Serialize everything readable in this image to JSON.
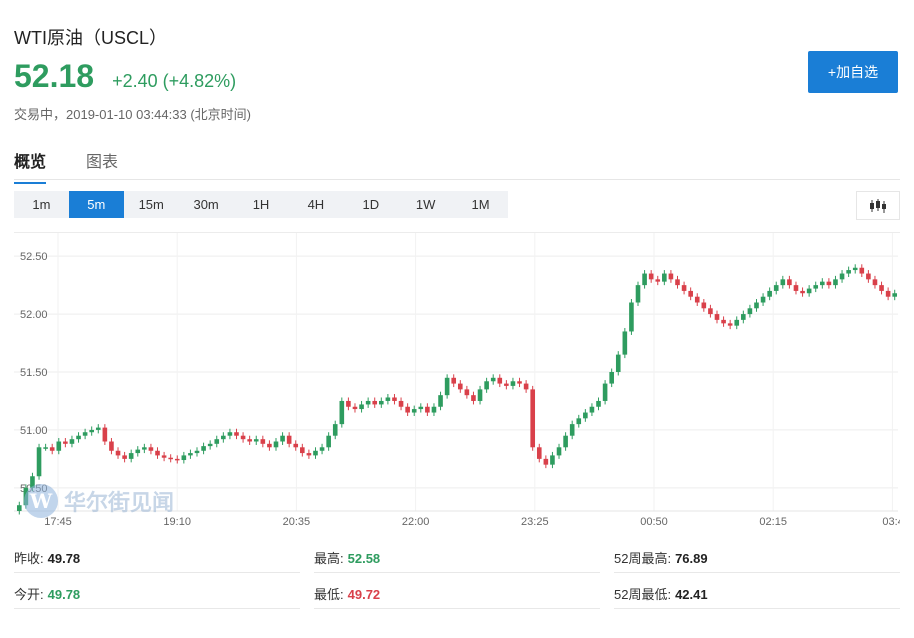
{
  "header": {
    "title": "WTI原油（USCL）",
    "price": "52.18",
    "change": "+2.40 (+4.82%)",
    "status": "交易中，2019-01-10 03:44:33 (北京时间)",
    "add_label": "+加自选"
  },
  "tabs": [
    {
      "label": "概览",
      "active": true
    },
    {
      "label": "图表",
      "active": false
    }
  ],
  "periods": [
    "1m",
    "5m",
    "15m",
    "30m",
    "1H",
    "4H",
    "1D",
    "1W",
    "1M"
  ],
  "active_period": "5m",
  "watermark": {
    "text": "华尔街见闻"
  },
  "colors": {
    "up": "#2e9c5f",
    "down": "#d9404a",
    "accent": "#1a7ed6"
  },
  "chart_data": {
    "type": "candlestick",
    "y_ticks": [
      "52.50",
      "52.00",
      "51.50",
      "51.00",
      "50.50"
    ],
    "x_ticks": [
      "17:45",
      "19:10",
      "20:35",
      "22:00",
      "23:25",
      "00:50",
      "02:15",
      "03:4"
    ],
    "ylim": [
      50.3,
      52.7
    ],
    "closes": [
      50.35,
      50.5,
      50.6,
      50.85,
      50.85,
      50.82,
      50.9,
      50.88,
      50.92,
      50.95,
      50.98,
      51.0,
      51.02,
      50.9,
      50.82,
      50.78,
      50.75,
      50.8,
      50.83,
      50.85,
      50.82,
      50.78,
      50.76,
      50.75,
      50.74,
      50.78,
      50.8,
      50.82,
      50.86,
      50.88,
      50.92,
      50.95,
      50.98,
      50.95,
      50.92,
      50.9,
      50.92,
      50.88,
      50.85,
      50.9,
      50.95,
      50.88,
      50.85,
      50.8,
      50.78,
      50.82,
      50.85,
      50.95,
      51.05,
      51.25,
      51.2,
      51.18,
      51.22,
      51.25,
      51.22,
      51.25,
      51.28,
      51.25,
      51.2,
      51.15,
      51.18,
      51.2,
      51.15,
      51.2,
      51.3,
      51.45,
      51.4,
      51.35,
      51.3,
      51.25,
      51.35,
      51.42,
      51.45,
      51.4,
      51.38,
      51.42,
      51.4,
      51.35,
      50.85,
      50.75,
      50.7,
      50.78,
      50.85,
      50.95,
      51.05,
      51.1,
      51.15,
      51.2,
      51.25,
      51.4,
      51.5,
      51.65,
      51.85,
      52.1,
      52.25,
      52.35,
      52.3,
      52.28,
      52.35,
      52.3,
      52.25,
      52.2,
      52.15,
      52.1,
      52.05,
      52.0,
      51.95,
      51.92,
      51.9,
      51.95,
      52.0,
      52.05,
      52.1,
      52.15,
      52.2,
      52.25,
      52.3,
      52.25,
      52.2,
      52.18,
      52.22,
      52.25,
      52.28,
      52.25,
      52.3,
      52.35,
      52.38,
      52.4,
      52.35,
      52.3,
      52.25,
      52.2,
      52.15,
      52.18
    ],
    "tick_size": 0.05
  },
  "stats": [
    [
      {
        "label": "昨收:",
        "value": "49.78",
        "tone": "dark"
      },
      {
        "label": "最高:",
        "value": "52.58",
        "tone": "green"
      },
      {
        "label": "52周最高:",
        "value": "76.89",
        "tone": "dark"
      }
    ],
    [
      {
        "label": "今开:",
        "value": "49.78",
        "tone": "green"
      },
      {
        "label": "最低:",
        "value": "49.72",
        "tone": "red"
      },
      {
        "label": "52周最低:",
        "value": "42.41",
        "tone": "dark"
      }
    ]
  ]
}
